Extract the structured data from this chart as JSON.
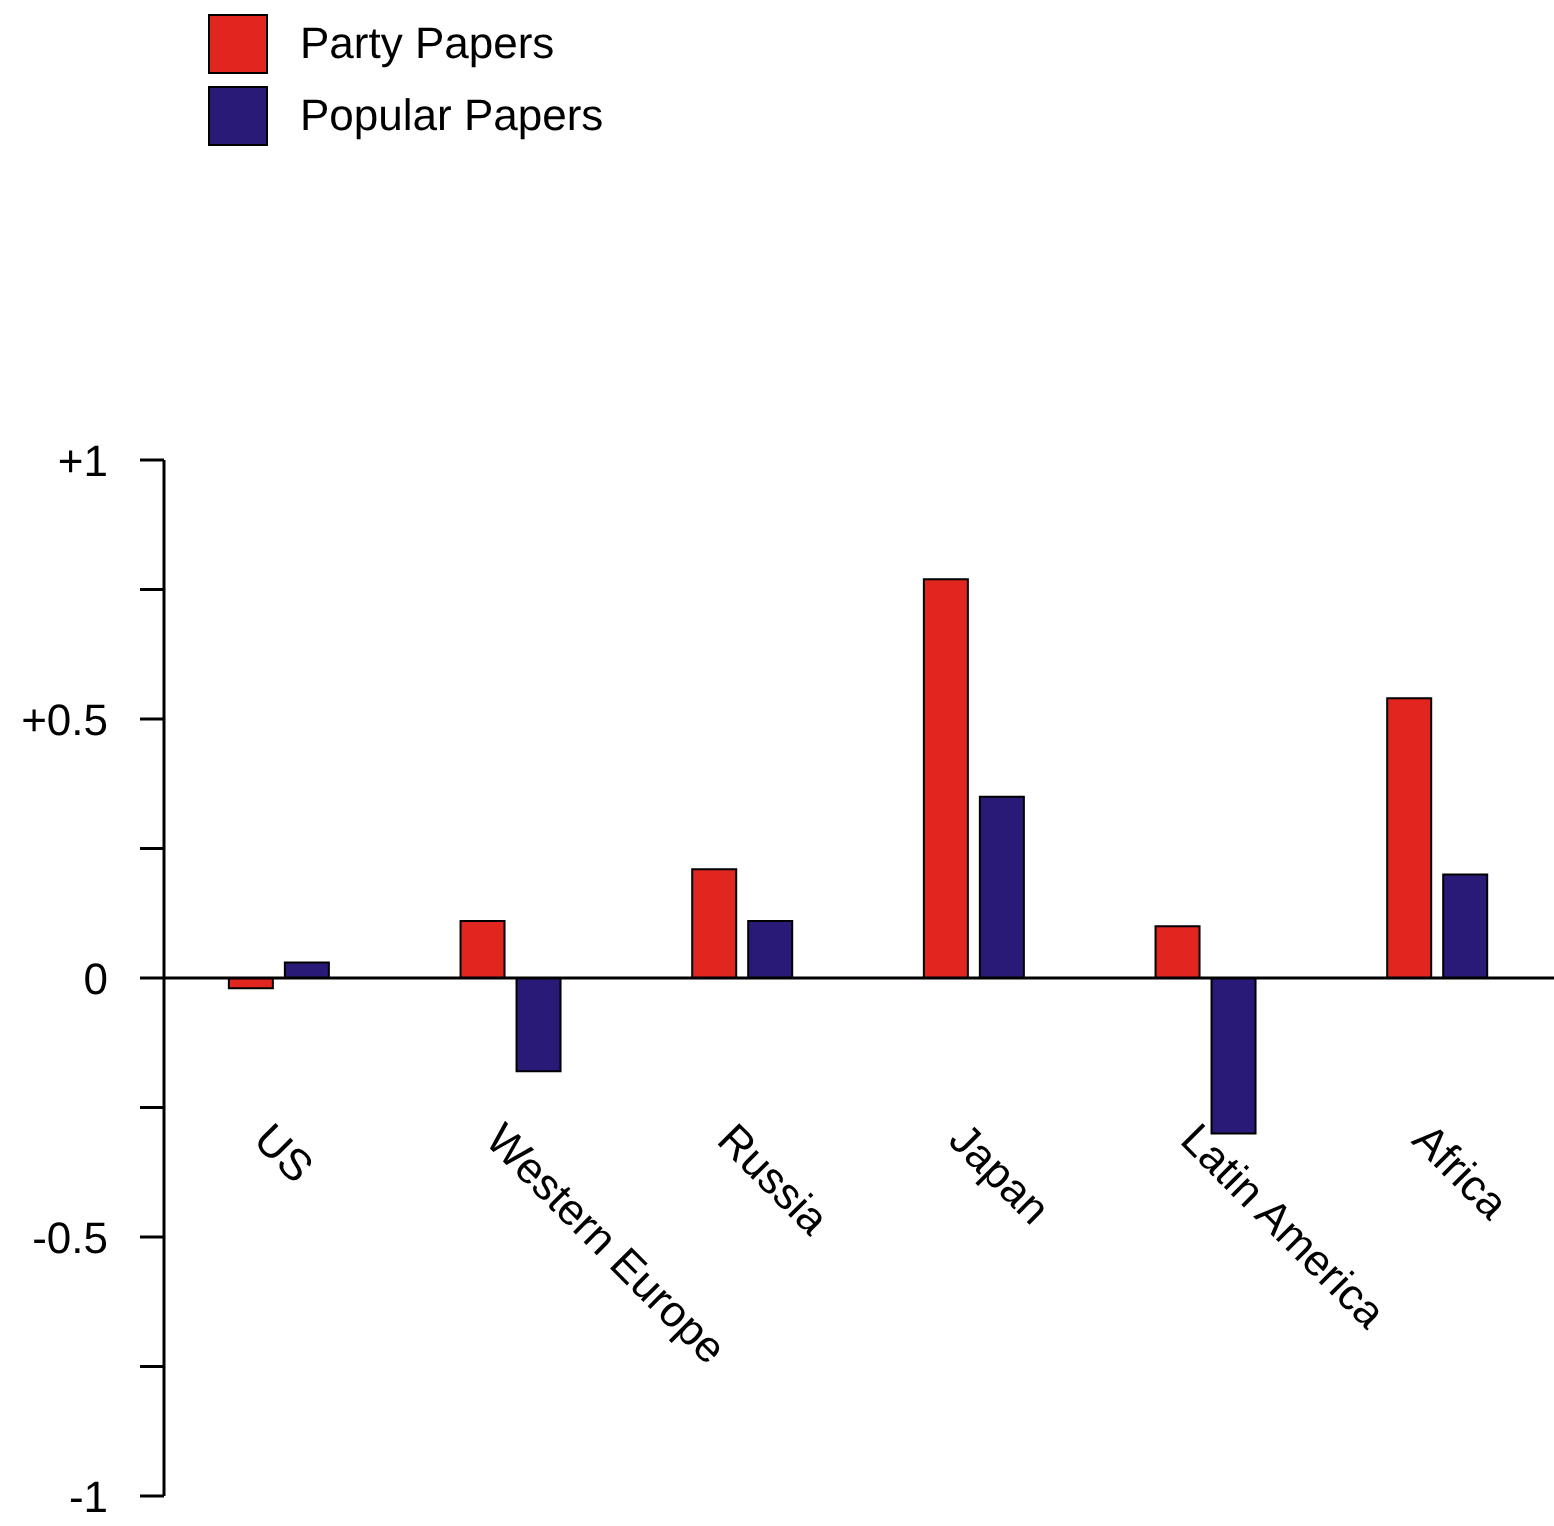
{
  "chart_data": {
    "type": "bar",
    "categories": [
      "US",
      "Western Europe",
      "Russia",
      "Japan",
      "Latin America",
      "Africa"
    ],
    "series": [
      {
        "name": "Party Papers",
        "color": "#e0261e",
        "values": [
          -0.02,
          0.11,
          0.21,
          0.77,
          0.1,
          0.54
        ]
      },
      {
        "name": "Popular Papers",
        "color": "#2a1a78",
        "values": [
          0.03,
          -0.18,
          0.11,
          0.35,
          -0.3,
          0.2
        ]
      }
    ],
    "ylim": [
      -1,
      1
    ],
    "yticks": [
      {
        "value": -1,
        "label": "-1"
      },
      {
        "value": -0.75,
        "label": null
      },
      {
        "value": -0.5,
        "label": "-0.5"
      },
      {
        "value": -0.25,
        "label": null
      },
      {
        "value": 0,
        "label": "0"
      },
      {
        "value": 0.25,
        "label": null
      },
      {
        "value": 0.5,
        "label": "+0.5"
      },
      {
        "value": 0.75,
        "label": null
      },
      {
        "value": 1,
        "label": "+1"
      }
    ],
    "legend": "top left"
  }
}
